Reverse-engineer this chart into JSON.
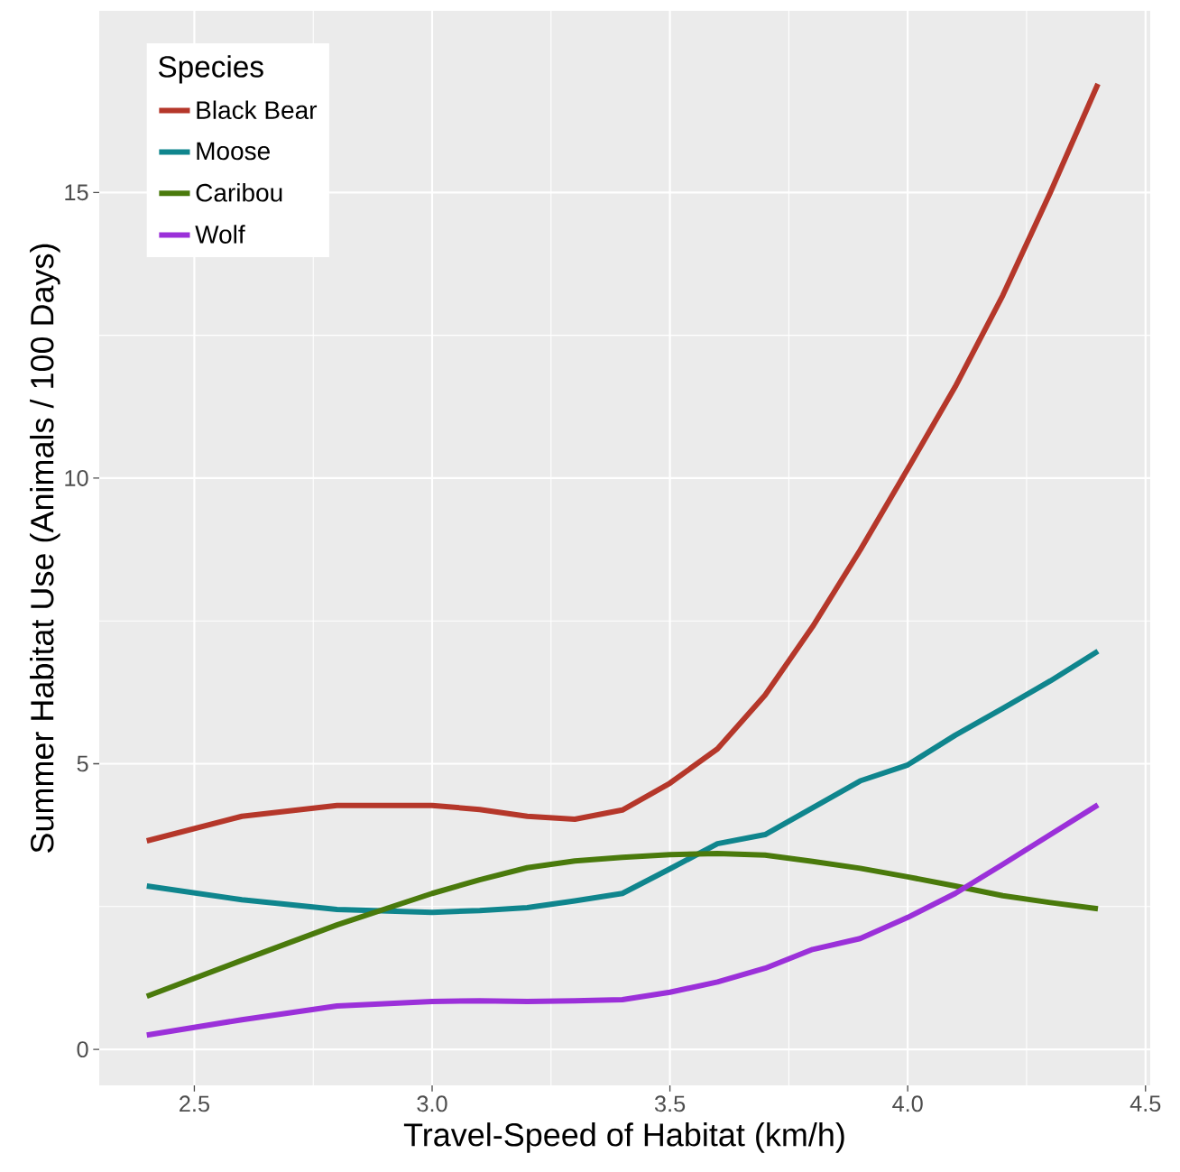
{
  "chart_data": {
    "type": "line",
    "xlabel": "Travel-Speed of Habitat (km/h)",
    "ylabel": "Summer Habitat Use (Animals / 100 Days)",
    "legend_title": "Species",
    "x": [
      2.4,
      2.6,
      2.8,
      3.0,
      3.1,
      3.2,
      3.3,
      3.4,
      3.5,
      3.6,
      3.7,
      3.8,
      3.9,
      4.0,
      4.1,
      4.2,
      4.3,
      4.4
    ],
    "series": [
      {
        "name": "Black Bear",
        "color": "#b5372a",
        "values": [
          3.65,
          4.08,
          4.27,
          4.27,
          4.2,
          4.08,
          4.03,
          4.19,
          4.66,
          5.26,
          6.2,
          7.4,
          8.74,
          10.16,
          11.6,
          13.2,
          15.0,
          16.9
        ]
      },
      {
        "name": "Moose",
        "color": "#0f858d",
        "values": [
          2.86,
          2.62,
          2.45,
          2.4,
          2.43,
          2.48,
          2.6,
          2.73,
          3.16,
          3.6,
          3.76,
          4.23,
          4.7,
          4.98,
          5.5,
          5.97,
          6.45,
          6.97
        ]
      },
      {
        "name": "Caribou",
        "color": "#4a7a0c",
        "values": [
          0.93,
          1.56,
          2.18,
          2.73,
          2.97,
          3.18,
          3.3,
          3.36,
          3.41,
          3.43,
          3.4,
          3.29,
          3.17,
          3.02,
          2.86,
          2.69,
          2.57,
          2.46
        ]
      },
      {
        "name": "Wolf",
        "color": "#9b30d9",
        "values": [
          0.25,
          0.52,
          0.76,
          0.84,
          0.85,
          0.84,
          0.85,
          0.87,
          1.0,
          1.18,
          1.42,
          1.75,
          1.94,
          2.31,
          2.73,
          3.24,
          3.76,
          4.28
        ]
      }
    ],
    "xlim": [
      2.3,
      4.51
    ],
    "ylim": [
      -0.63,
      18.18
    ],
    "xticks": [
      {
        "value": 2.5,
        "label": "2.5"
      },
      {
        "value": 3.0,
        "label": "3.0"
      },
      {
        "value": 3.5,
        "label": "3.5"
      },
      {
        "value": 4.0,
        "label": "4.0"
      },
      {
        "value": 4.5,
        "label": "4.5"
      }
    ],
    "yticks": [
      0,
      5,
      10,
      15
    ],
    "grid": true,
    "legend": "top left",
    "line_style": "solid"
  }
}
